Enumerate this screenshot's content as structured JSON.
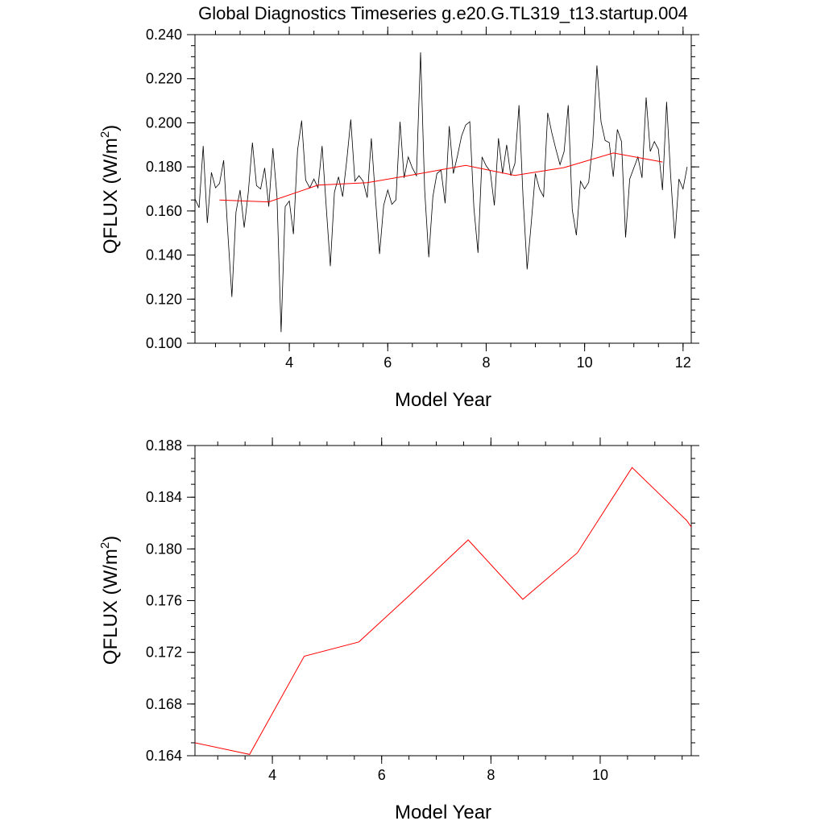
{
  "title": "Global Diagnostics Timeseries g.e20.G.TL319_t13.startup.004",
  "chart_data": [
    {
      "type": "line",
      "xlabel": "Model Year",
      "ylabel_main": "QFLUX (W/m",
      "ylabel_sup": "2",
      "ylabel_close": ")",
      "xlim": [
        2.0833,
        12.1667
      ],
      "ylim": [
        0.1,
        0.24
      ],
      "xticks": [
        4,
        6,
        8,
        10,
        12
      ],
      "yticks": [
        "0.100",
        "0.120",
        "0.140",
        "0.160",
        "0.180",
        "0.200",
        "0.220",
        "0.240"
      ],
      "yminor_step": 0.005,
      "xminor_step": 0.5,
      "series": [
        {
          "color": "#000000",
          "x_start": 2.0833,
          "x_step": 0.08333,
          "values": [
            0.1655,
            0.1615,
            0.1895,
            0.1545,
            0.1775,
            0.1705,
            0.1725,
            0.183,
            0.1505,
            0.121,
            0.1595,
            0.1695,
            0.1525,
            0.1685,
            0.191,
            0.1715,
            0.17,
            0.1795,
            0.162,
            0.1885,
            0.1665,
            0.105,
            0.162,
            0.1645,
            0.1495,
            0.1875,
            0.201,
            0.174,
            0.1705,
            0.1745,
            0.1705,
            0.1895,
            0.162,
            0.135,
            0.1685,
            0.1755,
            0.1665,
            0.183,
            0.2015,
            0.1735,
            0.176,
            0.1735,
            0.166,
            0.193,
            0.166,
            0.1405,
            0.1625,
            0.1695,
            0.163,
            0.165,
            0.2005,
            0.175,
            0.1845,
            0.1795,
            0.176,
            0.232,
            0.1695,
            0.139,
            0.1665,
            0.177,
            0.1785,
            0.1635,
            0.1985,
            0.177,
            0.185,
            0.194,
            0.199,
            0.2005,
            0.1615,
            0.141,
            0.1845,
            0.1805,
            0.178,
            0.1625,
            0.193,
            0.177,
            0.19,
            0.176,
            0.1815,
            0.208,
            0.1655,
            0.1335,
            0.1545,
            0.177,
            0.17,
            0.1665,
            0.2045,
            0.1955,
            0.188,
            0.181,
            0.187,
            0.208,
            0.1605,
            0.149,
            0.1735,
            0.17,
            0.173,
            0.191,
            0.226,
            0.2005,
            0.192,
            0.191,
            0.1755,
            0.197,
            0.1915,
            0.148,
            0.1745,
            0.1795,
            0.1845,
            0.175,
            0.2115,
            0.187,
            0.1915,
            0.188,
            0.1695,
            0.2095,
            0.1755,
            0.1475,
            0.1745,
            0.17,
            0.18
          ]
        },
        {
          "color": "#ff0000",
          "x": [
            2.5833,
            3.5833,
            4.5833,
            5.5833,
            6.5833,
            7.5833,
            8.5833,
            9.5833,
            10.5833,
            11.5833
          ],
          "values": [
            0.165,
            0.1641,
            0.1717,
            0.1728,
            0.1767,
            0.1807,
            0.1761,
            0.1797,
            0.1863,
            0.1822
          ]
        }
      ]
    },
    {
      "type": "line",
      "xlabel": "Model Year",
      "ylabel_main": "QFLUX (W/m",
      "ylabel_sup": "2",
      "ylabel_close": ")",
      "xlim": [
        2.5833,
        11.6667
      ],
      "ylim": [
        0.164,
        0.188
      ],
      "xticks": [
        4,
        6,
        8,
        10
      ],
      "yticks": [
        "0.164",
        "0.168",
        "0.172",
        "0.176",
        "0.180",
        "0.184",
        "0.188"
      ],
      "yminor_step": 0.001,
      "xminor_step": 0.5,
      "series": [
        {
          "color": "#ff0000",
          "x": [
            2.5833,
            3.5833,
            4.5833,
            5.5833,
            6.5833,
            7.5833,
            8.5833,
            9.5833,
            10.5833,
            11.5833,
            11.6667
          ],
          "values": [
            0.165,
            0.1641,
            0.1717,
            0.1728,
            0.1767,
            0.1807,
            0.1761,
            0.1797,
            0.1863,
            0.1822,
            0.1817
          ]
        }
      ]
    }
  ]
}
